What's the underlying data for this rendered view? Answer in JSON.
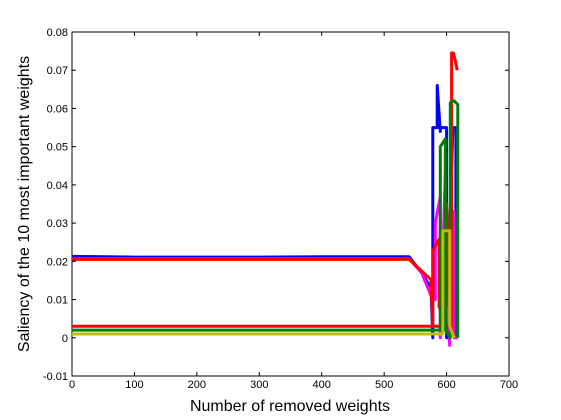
{
  "chart_data": {
    "type": "line",
    "title": "",
    "xlabel": "Number of removed weights",
    "ylabel": "Saliency of the 10 most important weights",
    "xlim": [
      0,
      700
    ],
    "ylim": [
      -0.01,
      0.08
    ],
    "x_ticks": [
      0,
      100,
      200,
      300,
      400,
      500,
      600,
      700
    ],
    "y_ticks": [
      -0.01,
      0,
      0.01,
      0.02,
      0.03,
      0.04,
      0.05,
      0.06,
      0.07,
      0.08
    ],
    "x_tick_labels": [
      "0",
      "100",
      "200",
      "300",
      "400",
      "500",
      "600",
      "700"
    ],
    "y_tick_labels": [
      "-0.01",
      "0",
      "0.01",
      "0.02",
      "0.03",
      "0.04",
      "0.05",
      "0.06",
      "0.07",
      "0.08"
    ],
    "grid": false,
    "legend": "none",
    "series": [
      {
        "color": "#0000ff",
        "x": [
          0,
          100,
          200,
          300,
          400,
          500,
          540,
          560,
          575,
          578,
          578,
          585,
          585,
          590,
          590,
          600,
          600,
          610,
          615,
          615
        ],
        "y": [
          0.0213,
          0.0211,
          0.0211,
          0.0211,
          0.0212,
          0.0212,
          0.0212,
          0.017,
          0.013,
          0.0,
          0.055,
          0.055,
          0.066,
          0.054,
          0.055,
          0.055,
          0.0,
          0.055,
          0.055,
          0.0
        ]
      },
      {
        "color": "#ff00ff",
        "x": [
          0,
          100,
          200,
          300,
          400,
          500,
          540,
          560,
          575,
          582,
          582,
          590,
          590,
          598,
          598,
          605,
          605,
          612,
          612,
          618
        ],
        "y": [
          0.0207,
          0.0207,
          0.0207,
          0.0207,
          0.0207,
          0.0207,
          0.0207,
          0.017,
          0.011,
          0.01,
          0.03,
          0.037,
          0.0,
          0.043,
          0.021,
          -0.002,
          0.028,
          0.033,
          0.0,
          0.0
        ]
      },
      {
        "color": "#ff0000",
        "x": [
          0,
          100,
          200,
          300,
          400,
          500,
          540,
          575,
          578,
          578,
          588,
          588,
          600,
          600,
          608,
          608,
          611,
          614,
          617,
          617
        ],
        "y": [
          0.0205,
          0.0205,
          0.0205,
          0.0205,
          0.0205,
          0.0205,
          0.0205,
          0.0152,
          0.003,
          0.0227,
          0.0258,
          0.008,
          0.0085,
          0.035,
          0.001,
          0.0745,
          0.0745,
          0.0725,
          0.07,
          0.07
        ]
      },
      {
        "color": "#ff0000",
        "x": [
          0,
          100,
          200,
          300,
          400,
          500,
          600,
          608
        ],
        "y": [
          0.003,
          0.003,
          0.003,
          0.003,
          0.003,
          0.003,
          0.003,
          0.003
        ]
      },
      {
        "color": "#008000",
        "x": [
          0,
          100,
          200,
          300,
          400,
          500,
          585,
          590,
          590,
          598,
          598,
          606,
          606,
          612,
          618,
          618
        ],
        "y": [
          0.002,
          0.002,
          0.002,
          0.002,
          0.002,
          0.002,
          0.002,
          0.002,
          0.05,
          0.052,
          0.002,
          0.0,
          0.0615,
          0.062,
          0.061,
          0.0
        ]
      },
      {
        "color": "#bfbf00",
        "x": [
          0,
          100,
          200,
          300,
          400,
          500,
          590,
          594,
          594,
          605,
          605,
          612,
          612
        ],
        "y": [
          0.001,
          0.001,
          0.001,
          0.001,
          0.001,
          0.001,
          0.001,
          0.001,
          0.028,
          0.028,
          0.003,
          0.0,
          0.0
        ]
      }
    ]
  }
}
